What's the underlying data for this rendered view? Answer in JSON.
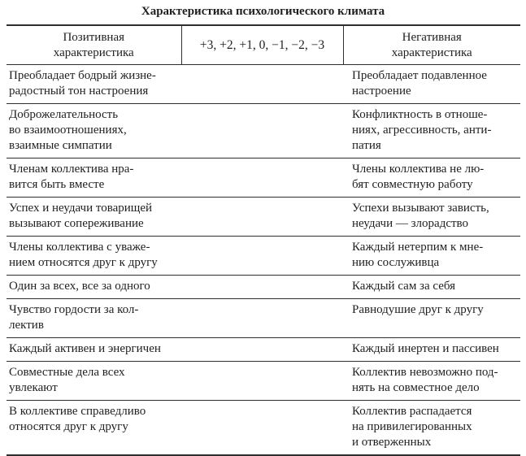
{
  "title": "Характеристика психологического климата",
  "colors": {
    "background": "#ffffff",
    "text": "#1f1f1f",
    "rule": "#2e2e2e"
  },
  "table": {
    "header": {
      "positive": "Позитивная\nхарактеристика",
      "scale": "+3, +2, +1, 0, −1, −2, −3",
      "negative": "Негативная\nхарактеристика"
    },
    "rows": [
      {
        "left": "Преобладает бодрый жизне-\nрадостный тон настроения",
        "right": "Преобладает подавленное\nнастроение"
      },
      {
        "left": "Доброжелательность\nво взаимоотношениях,\nвзаимные симпатии",
        "right": "Конфликтность в отноше-\nниях, агрессивность, анти-\nпатия"
      },
      {
        "left": "Членам коллектива нра-\nвится быть вместе",
        "right": "Члены коллектива не лю-\nбят совместную работу"
      },
      {
        "left": "Успех и неудачи товарищей\nвызывают сопереживание",
        "right": "Успехи вызывают зависть,\nнеудачи — злорадство"
      },
      {
        "left": "Члены коллектива с уваже-\nнием относятся друг к другу",
        "right": "Каждый нетерпим к мне-\nнию сослуживца"
      },
      {
        "left": "Один за всех, все за одного",
        "right": "Каждый сам за себя"
      },
      {
        "left": "Чувство гордости за кол-\nлектив",
        "right": "Равнодушие друг к другу"
      },
      {
        "left": "Каждый активен и энергичен",
        "right": "Каждый инертен и пассивен"
      },
      {
        "left": "Совместные дела всех\nувлекают",
        "right": "Коллектив невозможно под-\nнять на совместное дело"
      },
      {
        "left": "В коллективе справедливо\nотносятся друг к другу",
        "right": "Коллектив распадается\nна привилегированных\nи отверженных"
      }
    ]
  }
}
